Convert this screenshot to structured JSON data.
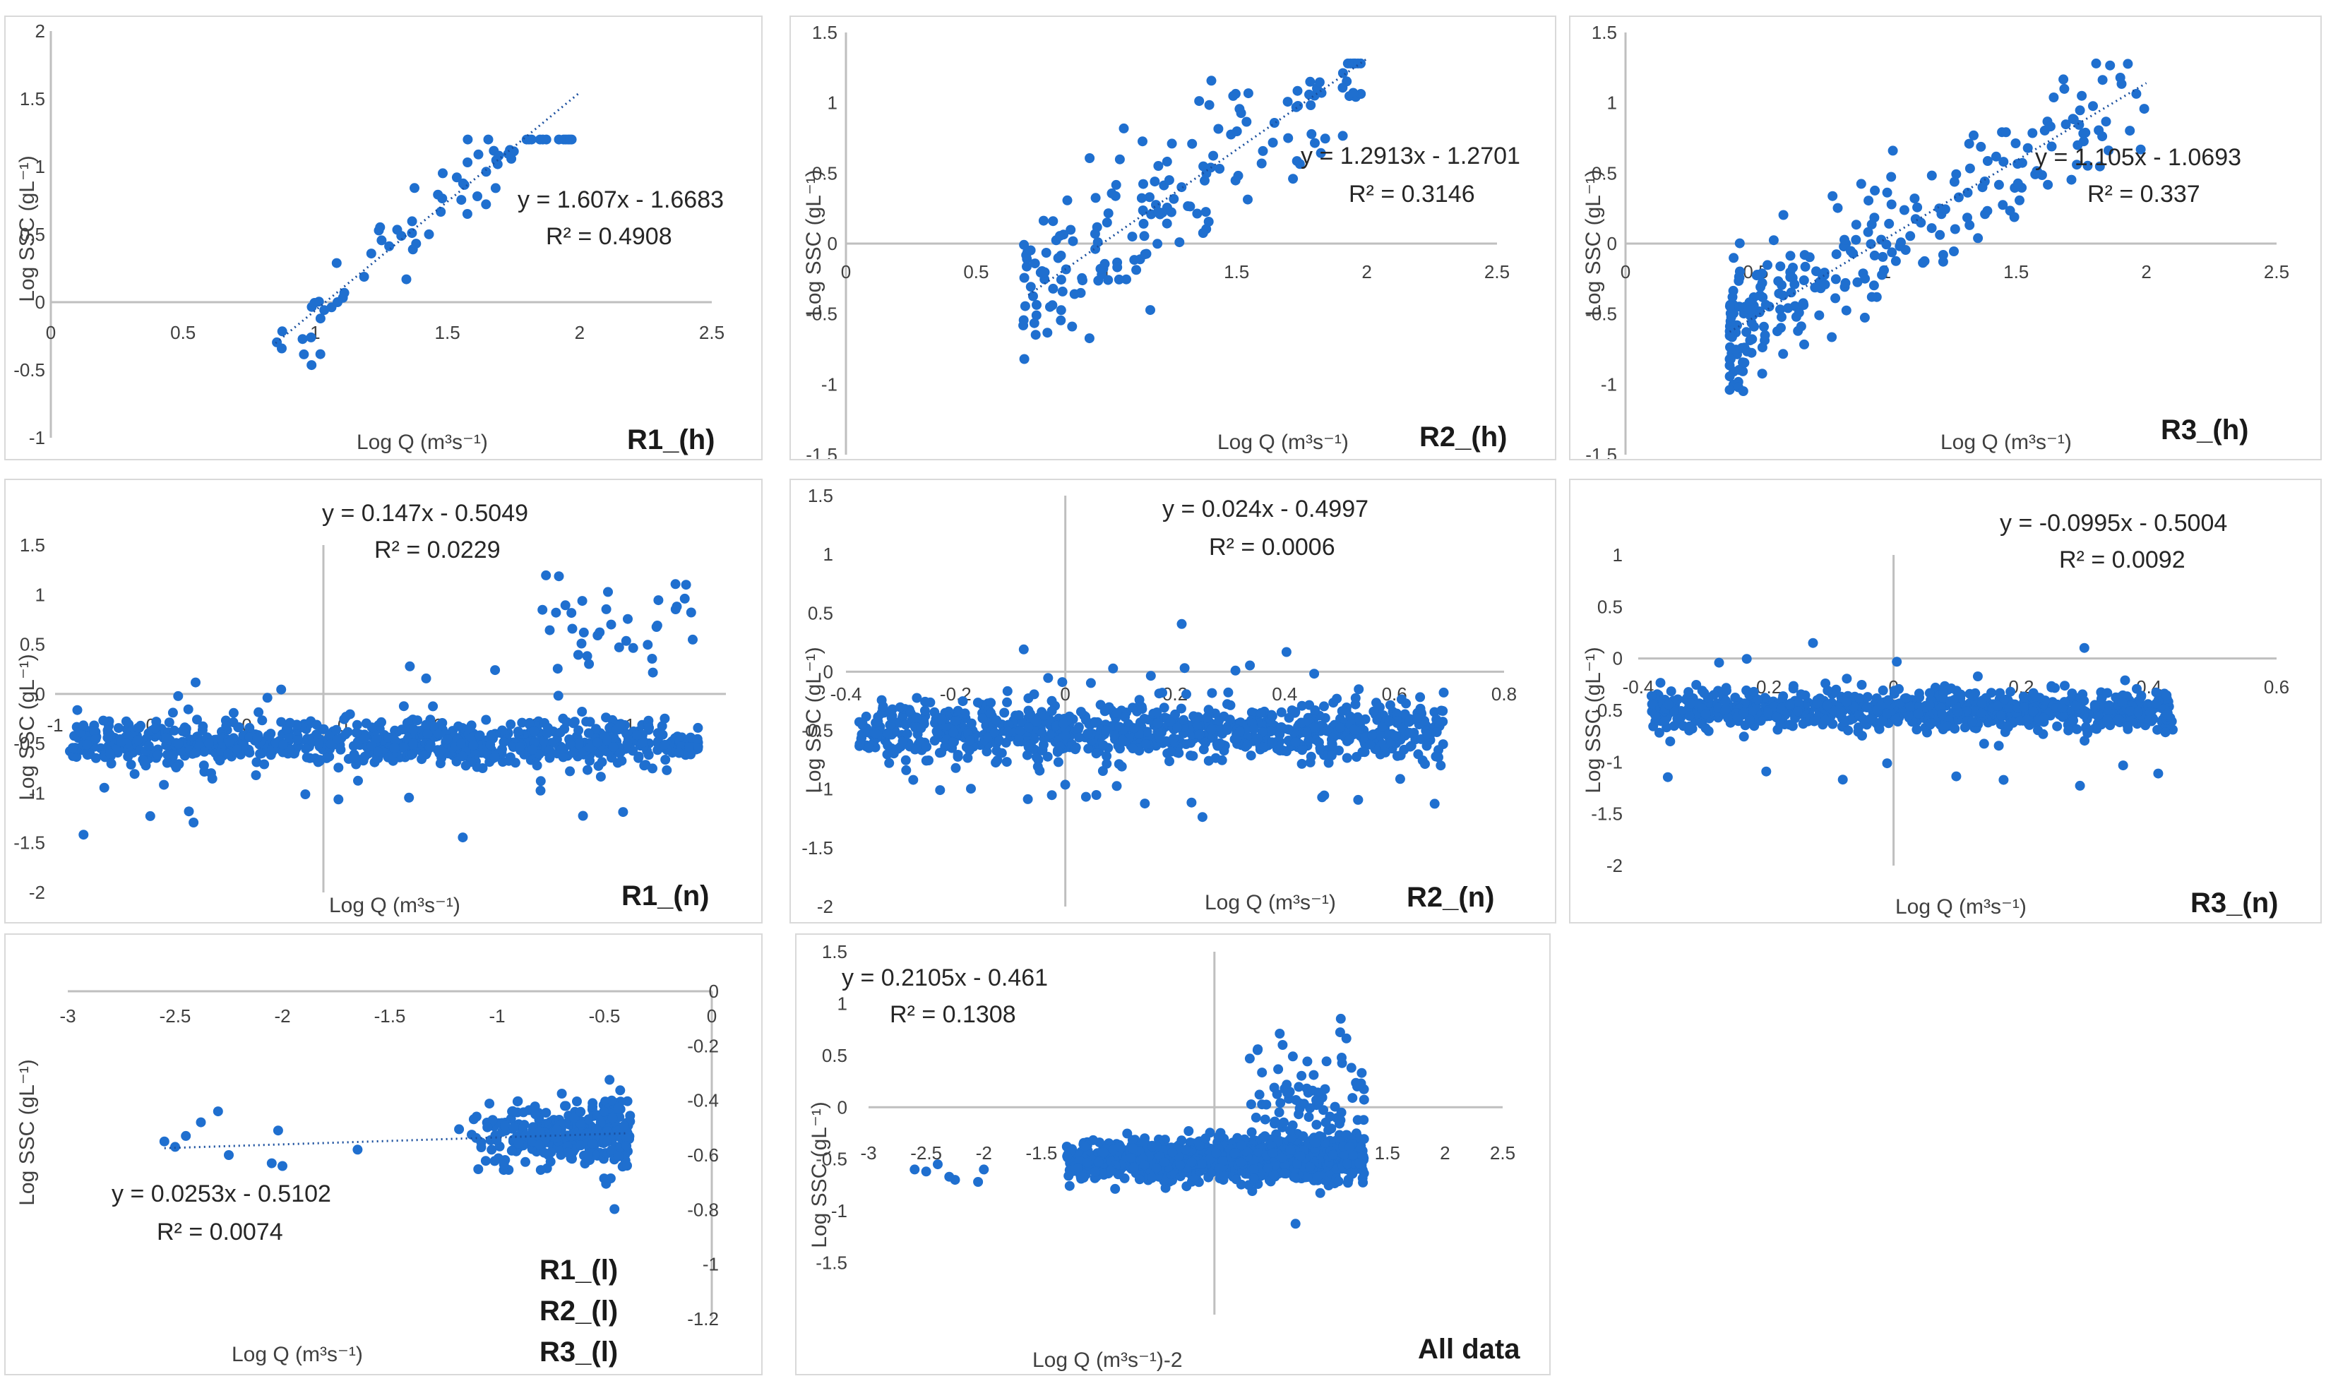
{
  "chart_data": [
    {
      "type": "scatter",
      "id": "R1_h",
      "panel_label": "R1_(h)",
      "xlabel": "Log Q (m³s⁻¹)",
      "ylabel": "Log SSC (gL⁻¹)",
      "xlim": [
        0,
        2.5
      ],
      "ylim": [
        -1,
        2
      ],
      "xticks": [
        "0",
        "0.5",
        "1",
        "1.5",
        "2",
        "2.5"
      ],
      "yticks": [
        "2",
        "1.5",
        "1",
        "0.5",
        "0",
        "-0.5",
        "-1"
      ],
      "equation": "y = 1.607x - 1.6683",
      "r2": "R² = 0.4908",
      "trend": {
        "slope": 1.607,
        "intercept": -1.6683,
        "x_range": [
          0.85,
          2.0
        ]
      }
    },
    {
      "type": "scatter",
      "id": "R2_h",
      "panel_label": "R2_(h)",
      "xlabel": "Log Q (m³s⁻¹)",
      "ylabel": "Log SSC (gL⁻¹)",
      "xlim": [
        0,
        2.5
      ],
      "ylim": [
        -1.5,
        1.5
      ],
      "xticks": [
        "0",
        "0.5",
        "1",
        "1.5",
        "2",
        "2.5"
      ],
      "yticks": [
        "1.5",
        "1",
        "0.5",
        "0",
        "-0.5",
        "-1",
        "-1.5"
      ],
      "equation": "y = 1.2913x - 1.2701",
      "r2": "R² = 0.3146",
      "trend": {
        "slope": 1.2913,
        "intercept": -1.2701,
        "x_range": [
          0.7,
          2.0
        ]
      }
    },
    {
      "type": "scatter",
      "id": "R3_h",
      "panel_label": "R3_(h)",
      "xlabel": "Log Q (m³s⁻¹)",
      "ylabel": "Log SSC (gL⁻¹)",
      "xlim": [
        0,
        2.5
      ],
      "ylim": [
        -1.5,
        1.5
      ],
      "xticks": [
        "0",
        "0.5",
        "1",
        "1.5",
        "2",
        "2.5"
      ],
      "yticks": [
        "1.5",
        "1",
        "0.5",
        "0",
        "-0.5",
        "-1",
        "-1.5"
      ],
      "equation": "y = 1.105x - 1.0693",
      "r2": "R² = 0.337",
      "trend": {
        "slope": 1.105,
        "intercept": -1.0693,
        "x_range": [
          0.4,
          2.0
        ]
      }
    },
    {
      "type": "scatter",
      "id": "R1_n",
      "panel_label": "R1_(n)",
      "xlabel": "Log Q (m³s⁻¹)",
      "ylabel": "Log SSC (gL⁻¹)",
      "xlim": [
        -1,
        1.5
      ],
      "ylim": [
        -2,
        1.5
      ],
      "xticks": [
        "-1",
        "0",
        "0",
        "0",
        "0",
        "1",
        "1"
      ],
      "yticks": [
        "1.5",
        "1",
        "0.5",
        "0",
        "-0.5",
        "-1",
        "-1.5",
        "-2"
      ],
      "equation": "y = 0.147x - 0.5049",
      "r2": "R² = 0.0229",
      "trend": null
    },
    {
      "type": "scatter",
      "id": "R2_n",
      "panel_label": "R2_(n)",
      "xlabel": "Log Q (m³s⁻¹)",
      "ylabel": "Log SSC (gL⁻¹)",
      "xlim": [
        -0.4,
        0.8
      ],
      "ylim": [
        -2,
        1.5
      ],
      "xticks": [
        "-0.4",
        "-0.2",
        "0",
        "0.2",
        "0.4",
        "0.6",
        "0.8"
      ],
      "yticks": [
        "1.5",
        "1",
        "0.5",
        "0",
        "-0.5",
        "-1",
        "-1.5",
        "-2"
      ],
      "equation": "y = 0.024x - 0.4997",
      "r2": "R² = 0.0006",
      "trend": null
    },
    {
      "type": "scatter",
      "id": "R3_n",
      "panel_label": "R3_(n)",
      "xlabel": "Log Q (m³s⁻¹)",
      "ylabel": "Log SSC (gL⁻¹)",
      "xlim": [
        -0.4,
        0.6
      ],
      "ylim": [
        -2,
        1
      ],
      "xticks": [
        "-0.4",
        "-0.2",
        "0",
        "0.2",
        "0.4",
        "0.6"
      ],
      "yticks": [
        "1",
        "0.5",
        "0",
        "-0.5",
        "-1",
        "-1.5",
        "-2"
      ],
      "equation": "y = -0.0995x - 0.5004",
      "r2": "R² = 0.0092",
      "trend": null
    },
    {
      "type": "scatter",
      "id": "R123_l",
      "panel_label": [
        "R1_(l)",
        "R2_(l)",
        "R3_(l)"
      ],
      "xlabel": "Log Q (m³s⁻¹)",
      "ylabel": "Log SSC (gL⁻¹)",
      "xlim": [
        -3,
        0
      ],
      "ylim": [
        -1.2,
        0
      ],
      "xticks": [
        "-3",
        "-2.5",
        "-2",
        "-1.5",
        "-1",
        "-0.5",
        "0"
      ],
      "yticks": [
        "0",
        "-0.2",
        "-0.4",
        "-0.6",
        "-0.8",
        "-1",
        "-1.2"
      ],
      "equation": "y = 0.0253x - 0.5102",
      "r2": "R² = 0.0074",
      "trend": {
        "slope": 0.0253,
        "intercept": -0.5102,
        "x_range": [
          -2.55,
          -0.4
        ]
      }
    },
    {
      "type": "scatter",
      "id": "All",
      "panel_label": "All data",
      "xlabel": "Log Q (m³s⁻¹)",
      "xlabel_suffix": "-2",
      "ylabel": "Log SSC (gL⁻¹)",
      "xlim": [
        -3,
        2.5
      ],
      "ylim": [
        -2,
        1.5
      ],
      "xticks": [
        "-3",
        "-2.5",
        "-2",
        "-1.5",
        "-1",
        "-0.5",
        "0",
        "0.5",
        "1",
        "1.5",
        "2",
        "2.5"
      ],
      "yticks": [
        "1.5",
        "1",
        "0.5",
        "0",
        "-0.5",
        "-1",
        "-1.5"
      ],
      "equation": "y = 0.2105x - 0.461",
      "r2": "R² = 0.1308",
      "trend": null
    }
  ],
  "colors": {
    "points": "#1f6fcf",
    "trend": "#1a4f9e",
    "axis": "#bfbfbf",
    "border": "#d9d9d9"
  }
}
